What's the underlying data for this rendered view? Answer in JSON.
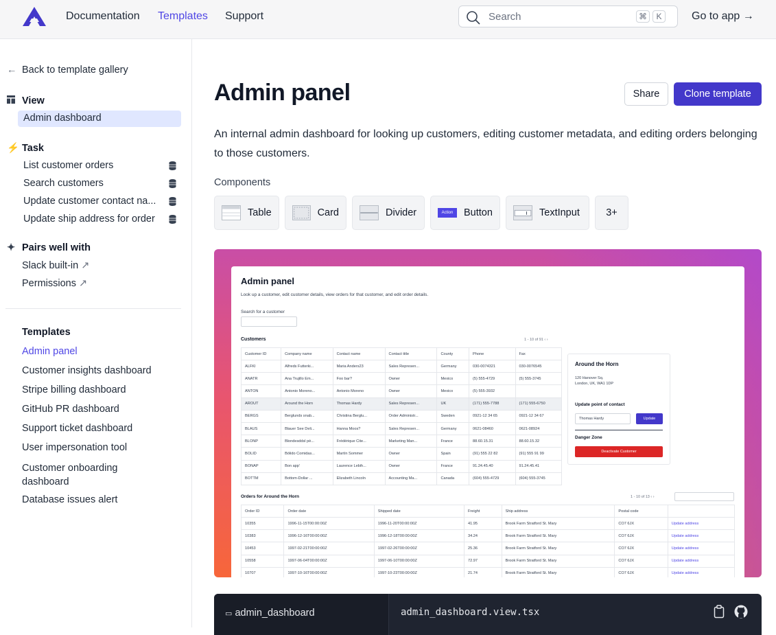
{
  "header": {
    "nav": [
      "Documentation",
      "Templates",
      "Support"
    ],
    "active_nav": "Templates",
    "search_placeholder": "Search",
    "search_shortcut": [
      "⌘",
      "K"
    ],
    "go_to_app": "Go to app →"
  },
  "sidebar": {
    "back": "Back to template gallery",
    "view_heading": "View",
    "view_items": [
      "Admin dashboard"
    ],
    "task_heading": "Task",
    "task_items": [
      "List customer orders",
      "Search customers",
      "Update customer contact na...",
      "Update ship address for order"
    ],
    "pairs_heading": "Pairs well with",
    "pairs_items": [
      "Slack built-in",
      "Permissions"
    ],
    "templates_heading": "Templates",
    "templates": [
      "Admin panel",
      "Customer insights dashboard",
      "Stripe billing dashboard",
      "GitHub PR dashboard",
      "Support ticket dashboard",
      "User impersonation tool",
      "Customer onboarding dashboard",
      "Database issues alert"
    ],
    "active_template": "Admin panel"
  },
  "main": {
    "title": "Admin panel",
    "share": "Share",
    "clone": "Clone template",
    "description": "An internal admin dashboard for looking up customers, editing customer metadata, and editing orders belonging to those customers.",
    "components_label": "Components",
    "components": [
      "Table",
      "Card",
      "Divider",
      "Button",
      "TextInput",
      "3+"
    ],
    "button_icon_text": "Action"
  },
  "preview": {
    "title": "Admin panel",
    "subtitle": "Look up a customer, edit customer details, view orders for that customer, and edit order details.",
    "search_label": "Search for a customer",
    "customers_heading": "Customers",
    "customers_pagination": "1 - 10 of 91",
    "customer_columns": [
      "Customer ID",
      "Company name",
      "Contact name",
      "Contact title",
      "County",
      "Phone",
      "Fax"
    ],
    "customers": [
      [
        "ALFKI",
        "Alfreds Futterki...",
        "Maria Anders23",
        "Sales Represen...",
        "Germany",
        "030-0074321",
        "030-0076545"
      ],
      [
        "ANATR",
        "Ana Trujillo Em...",
        "Foo bar?",
        "Owner",
        "Mexico",
        "(5) 555-4729",
        "(5) 555-3745"
      ],
      [
        "ANTON",
        "Antonio Moreno...",
        "Antonio Moreno",
        "Owner",
        "Mexico",
        "(5) 555-3932",
        ""
      ],
      [
        "AROUT",
        "Around the Horn",
        "Thomas Hardy",
        "Sales Represen...",
        "UK",
        "(171) 555-7788",
        "(171) 555-6750"
      ],
      [
        "BERGS",
        "Berglunds snab...",
        "Christina Berglu...",
        "Order Administr...",
        "Sweden",
        "0921-12 34 65",
        "0921-12 34 67"
      ],
      [
        "BLAUS",
        "Blauer See Deli...",
        "Hanna Moos?",
        "Sales Represen...",
        "Germany",
        "0621-08460",
        "0621-08924"
      ],
      [
        "BLONP",
        "Blondesddsl pè...",
        "Frédérique Cite...",
        "Marketing Man...",
        "France",
        "88.60.15.31",
        "88.60.15.32"
      ],
      [
        "BOLID",
        "Bólido Comidas...",
        "Martín Sommer",
        "Owner",
        "Spain",
        "(91) 555 22 82",
        "(91) 555 91 99"
      ],
      [
        "BONAP",
        "Bon app'",
        "Laurence Lebih...",
        "Owner",
        "France",
        "91.24.45.40",
        "91.24.45.41"
      ],
      [
        "BOTTM",
        "Bottom-Dollar ...",
        "Elizabeth Lincoln",
        "Accounting Ma...",
        "Canada",
        "(604) 555-4729",
        "(604) 555-3745"
      ]
    ],
    "highlighted_row": 3,
    "detail": {
      "title": "Around the Horn",
      "address": "120 Hanover Sq.\nLondon, UK, WA1 1DP",
      "update_heading": "Update point of contact",
      "contact_value": "Thomas Hardy",
      "update_button": "Update",
      "danger_heading": "Danger Zone",
      "deactivate_button": "Deactivate Customer"
    },
    "orders_heading": "Orders for Around the Horn",
    "orders_pagination": "1 - 10 of 13",
    "order_columns": [
      "Order ID",
      "Order date",
      "Shipped date",
      "Freight",
      "Ship address",
      "Postal code",
      ""
    ],
    "orders": [
      [
        "10355",
        "1996-11-15T00:00:00Z",
        "1996-11-20T00:00:00Z",
        "41.95",
        "Brook Farm Stratford St. Mary",
        "CO7 6JX",
        "Update address"
      ],
      [
        "10383",
        "1996-12-16T00:00:00Z",
        "1996-12-18T00:00:00Z",
        "34.24",
        "Brook Farm Stratford St. Mary",
        "CO7 6JX",
        "Update address"
      ],
      [
        "10453",
        "1997-02-21T00:00:00Z",
        "1997-02-26T00:00:00Z",
        "25.36",
        "Brook Farm Stratford St. Mary",
        "CO7 6JX",
        "Update address"
      ],
      [
        "10558",
        "1997-06-04T00:00:00Z",
        "1997-06-10T00:00:00Z",
        "72.97",
        "Brook Farm Stratford St. Mary",
        "CO7 6JX",
        "Update address"
      ],
      [
        "10707",
        "1997-10-16T00:00:00Z",
        "1997-10-23T00:00:00Z",
        "21.74",
        "Brook Farm Stratford St. Mary",
        "CO7 6JX",
        "Update address"
      ]
    ]
  },
  "code_panel": {
    "folder": "admin_dashboard",
    "filename": "admin_dashboard.view.tsx"
  },
  "colors": {
    "accent": "#4338ca",
    "accent_text": "#4f46e5",
    "selected_bg": "#e0e7ff",
    "danger": "#dc2626"
  }
}
